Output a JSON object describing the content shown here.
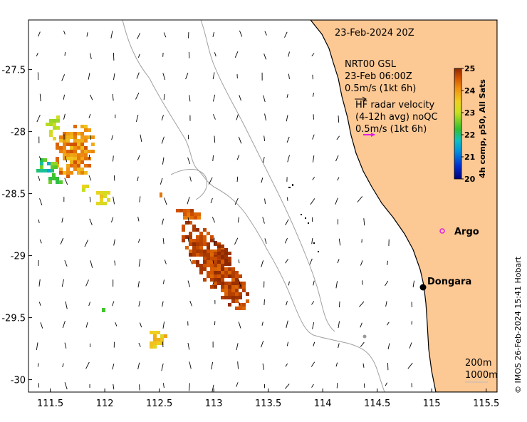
{
  "map": {
    "date_label": "23-Feb-2024 20Z",
    "model_legend": [
      "NRT00 GSL",
      "23-Feb 06:00Z",
      "0.5m/s (1kt 6h)"
    ],
    "hf_legend": [
      "HF radar velocity",
      "(4-12h avg) noQC",
      "0.5m/s (1kt 6h)"
    ],
    "colorbar": {
      "label": "4h comp, p50, All Sats",
      "ticks": [
        "25",
        "24",
        "23",
        "22",
        "21",
        "20"
      ],
      "min": 20,
      "max": 25
    },
    "places": [
      {
        "name": "Argo",
        "lon": 115.1,
        "lat": -28.82
      },
      {
        "name": "Dongara",
        "lon": 114.92,
        "lat": -29.25
      }
    ],
    "depth_legend": [
      "200m",
      "1000m"
    ],
    "credit": "© IMOS 26-Feb-2024 15:41 Hobart",
    "lon_ticks": [
      "111.5",
      "112",
      "112.5",
      "113",
      "113.5",
      "114",
      "114.5",
      "115",
      "115.5"
    ],
    "lat_ticks": [
      "-27.5",
      "-28",
      "-28.5",
      "-29",
      "-29.5",
      "-30"
    ],
    "lon_range": [
      111.3,
      115.6
    ],
    "lat_range": [
      -30.1,
      -27.1
    ],
    "colors": {
      "land": "#fcc894",
      "argo_marker": "#e020e0",
      "hf_arrow": "#e020e0",
      "coast": "#000000",
      "isobath": "#9a9a9a"
    }
  }
}
